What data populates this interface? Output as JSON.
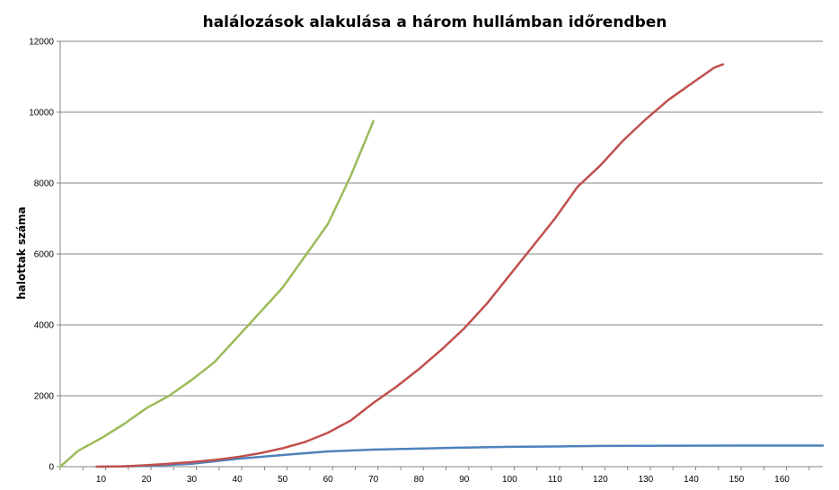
{
  "chart_data": {
    "type": "line",
    "title": "halálozások alakulása a három hullámban időrendben",
    "xlabel": "",
    "ylabel": "halottak száma",
    "xlim": [
      1,
      169
    ],
    "ylim": [
      0,
      12000
    ],
    "x_ticks": [
      10,
      20,
      30,
      40,
      50,
      60,
      70,
      80,
      90,
      100,
      110,
      120,
      130,
      140,
      150,
      160
    ],
    "y_ticks": [
      0,
      2000,
      4000,
      6000,
      8000,
      10000,
      12000
    ],
    "grid": {
      "horizontal": true,
      "vertical": false
    },
    "legend": "none",
    "series": [
      {
        "color": "#4f81bd",
        "x": [
          10,
          20,
          30,
          40,
          50,
          60,
          70,
          80,
          90,
          100,
          110,
          120,
          130,
          140,
          150,
          160,
          169
        ],
        "y": [
          0,
          20,
          80,
          220,
          330,
          430,
          480,
          510,
          540,
          560,
          570,
          585,
          590,
          592,
          594,
          595,
          595
        ]
      },
      {
        "color": "#c0504d",
        "x": [
          9,
          15,
          20,
          25,
          30,
          35,
          40,
          45,
          50,
          55,
          60,
          65,
          70,
          75,
          80,
          85,
          90,
          95,
          100,
          105,
          110,
          115,
          120,
          125,
          130,
          135,
          140,
          145,
          147
        ],
        "y": [
          0,
          10,
          40,
          80,
          130,
          190,
          270,
          380,
          520,
          700,
          960,
          1300,
          1800,
          2250,
          2750,
          3300,
          3900,
          4600,
          5400,
          6200,
          7000,
          7900,
          8500,
          9200,
          9800,
          10350,
          10800,
          11250,
          11350
        ]
      },
      {
        "color": "#9bbb59",
        "x": [
          1,
          5,
          10,
          15,
          20,
          25,
          30,
          35,
          40,
          45,
          50,
          55,
          60,
          65,
          70
        ],
        "y": [
          0,
          450,
          800,
          1200,
          1650,
          2000,
          2450,
          2950,
          3650,
          4350,
          5050,
          5950,
          6850,
          8200,
          9750
        ]
      }
    ]
  }
}
